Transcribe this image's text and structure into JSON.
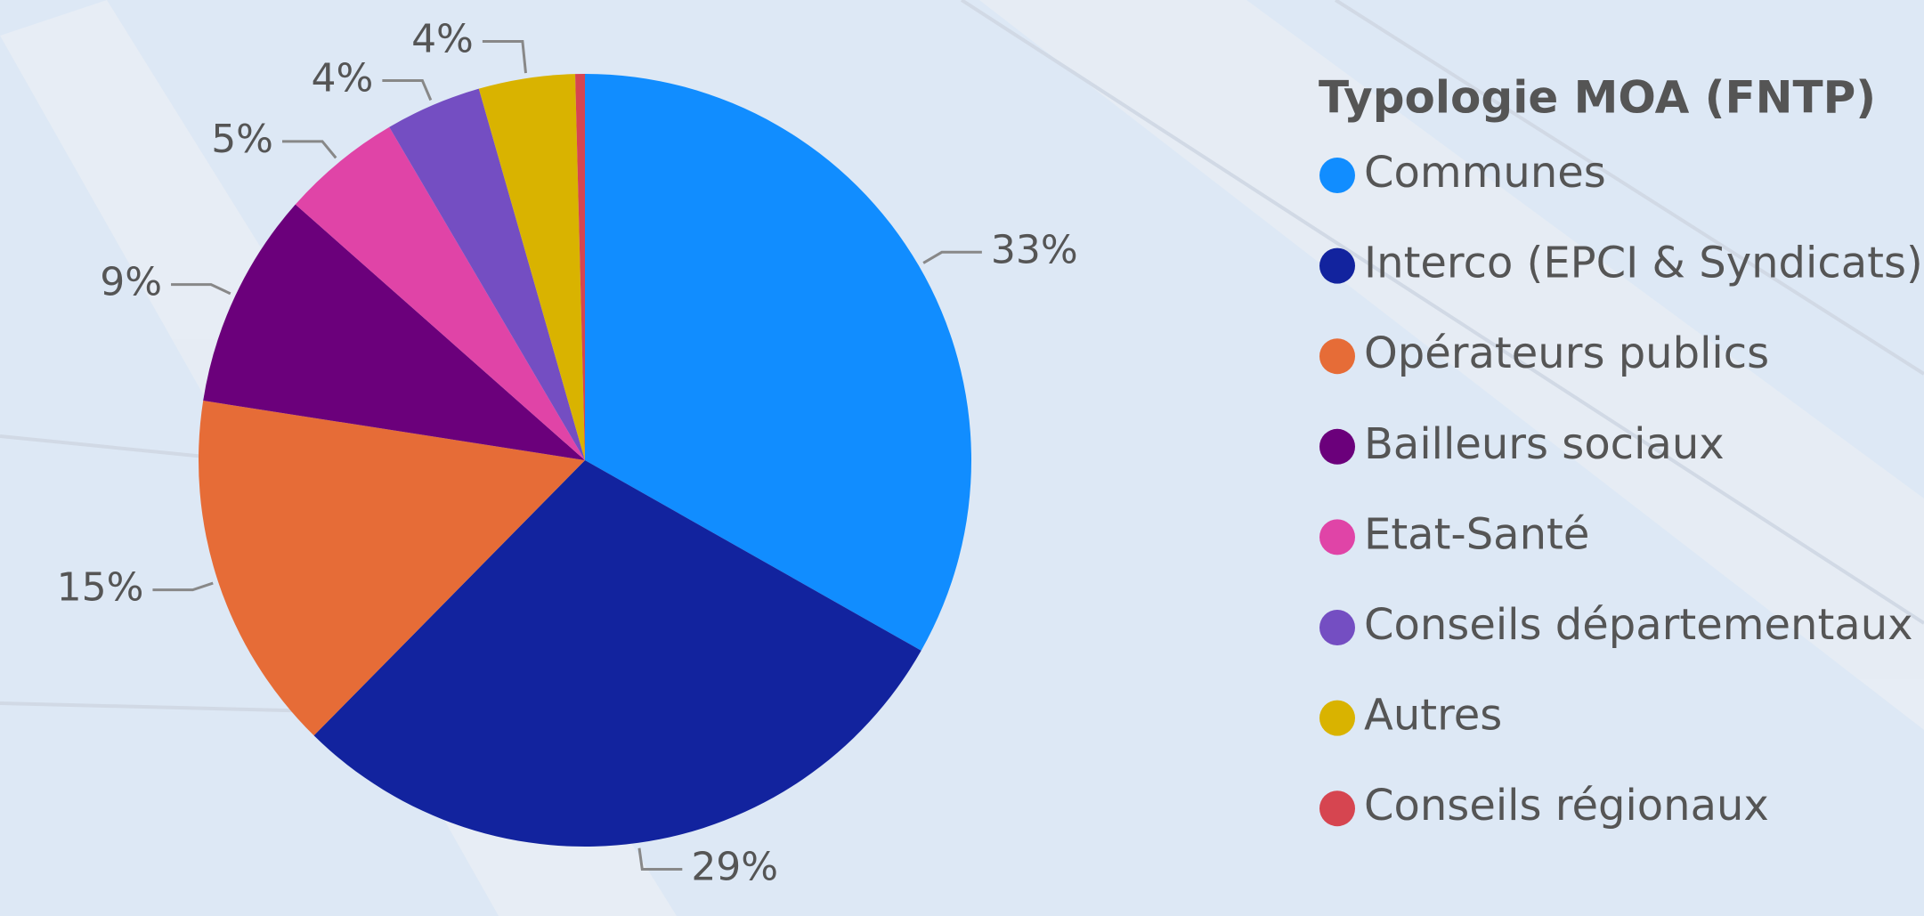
{
  "chart_data": {
    "type": "pie",
    "legend_title": "Typologie MOA (FNTP)",
    "legend": "right",
    "categories": [
      "Communes",
      "Interco (EPCI & Syndicats)",
      "Opérateurs publics",
      "Bailleurs sociaux",
      "Etat-Santé",
      "Conseils départementaux",
      "Autres",
      "Conseils régionaux"
    ],
    "values": [
      33,
      29,
      15,
      9,
      5,
      4,
      4,
      0.4
    ],
    "value_labels": [
      "33%",
      "29%",
      "15%",
      "9%",
      "5%",
      "4%",
      "4%",
      null
    ],
    "colors": [
      "#118dff",
      "#12239e",
      "#e66c37",
      "#6b007b",
      "#e044a7",
      "#744ec2",
      "#d9b300",
      "#d64550"
    ]
  }
}
